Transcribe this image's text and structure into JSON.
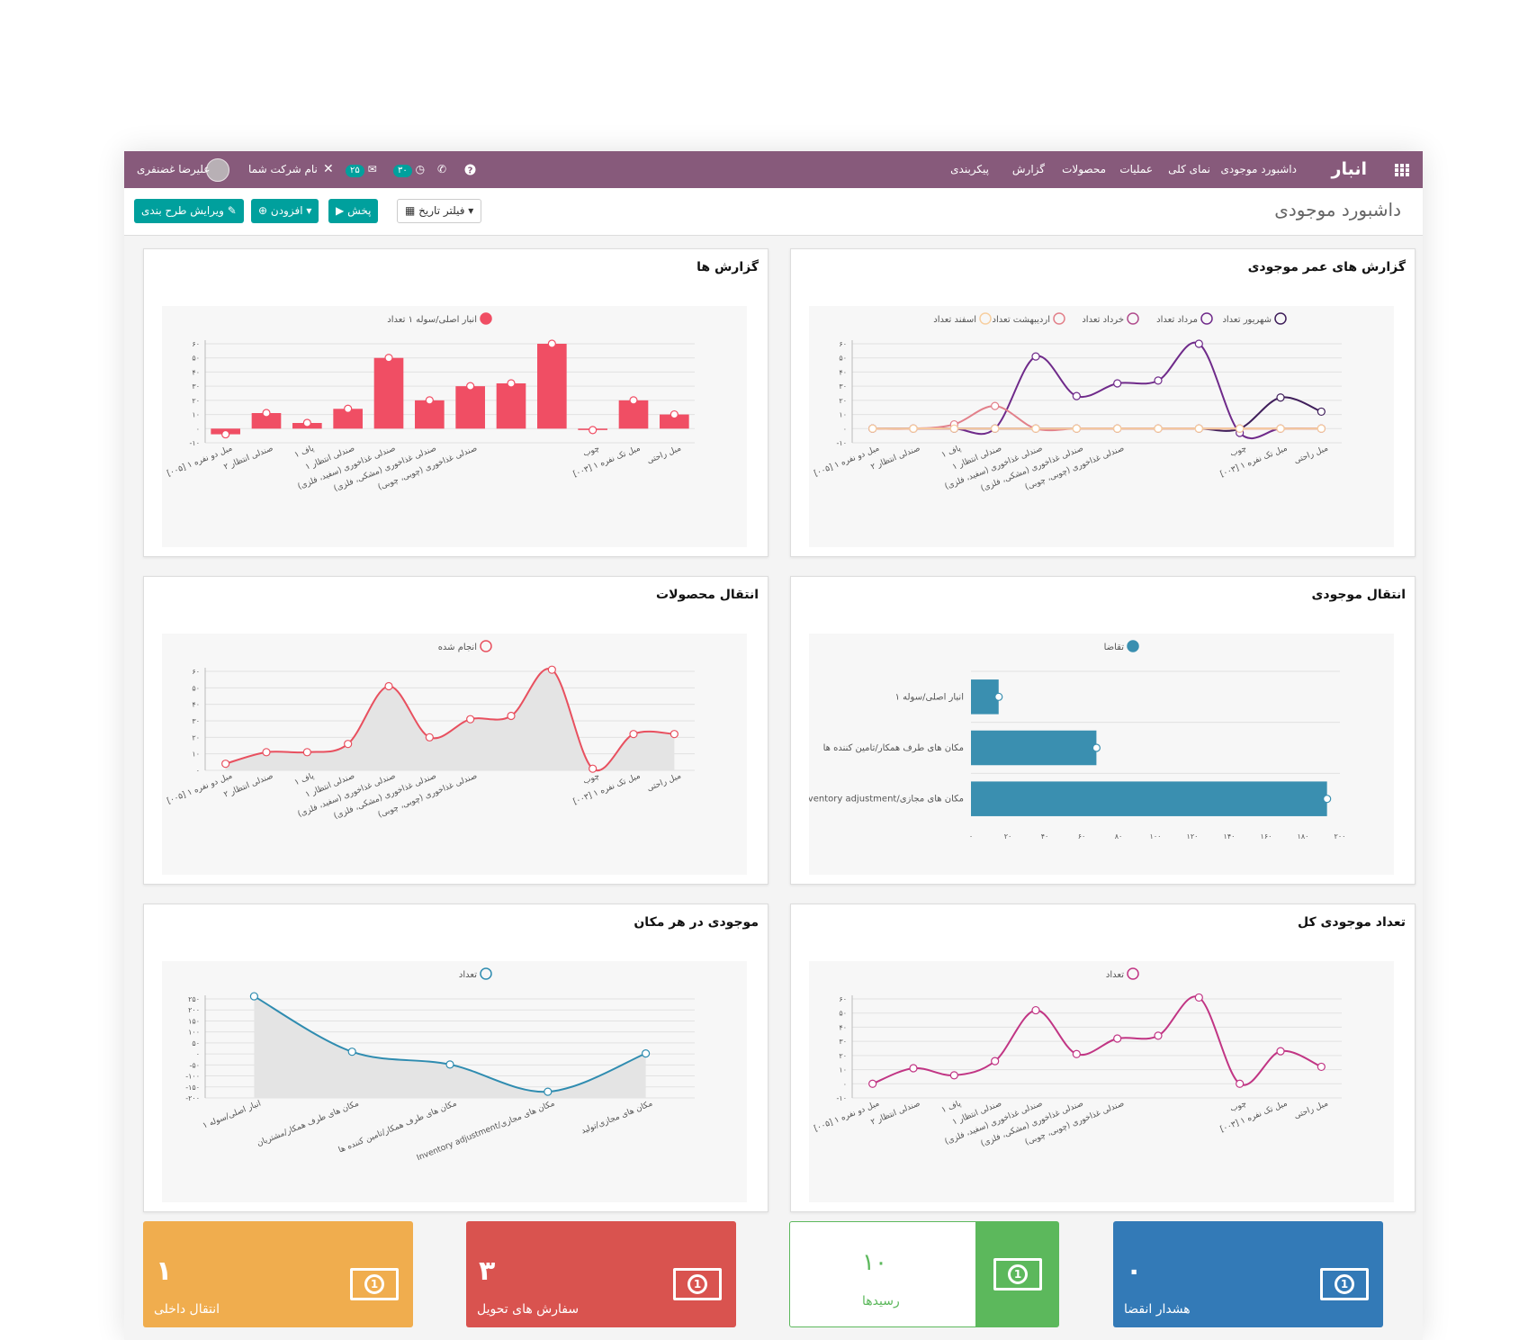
{
  "app": {
    "brand": "انبار",
    "menu": [
      "داشبورد موجودی",
      "نمای کلی",
      "عملیات",
      "محصولات",
      "گزارش",
      "پیکربندی"
    ],
    "user": "علیرضا غضنفری",
    "company": "نام شرکت شما",
    "badge_messages": "۲۵",
    "badge_activities": "۳۰"
  },
  "control_panel": {
    "title": "داشبورد موجودی",
    "date_filter": "فیلتر تاریخ",
    "play_button": "پخش",
    "add_button": "افزودن",
    "edit_layout_button": "ویرایش طرح بندی"
  },
  "tiles": [
    {
      "value": "۰",
      "label": "هشدار انقضا",
      "color": "#337ab7"
    },
    {
      "value": "۱۰",
      "label": "رسیدها",
      "color": "#5cb85c"
    },
    {
      "value": "۳",
      "label": "سفارش های تحویل",
      "color": "#d9534f"
    },
    {
      "value": "۱",
      "label": "انتقال داخلی",
      "color": "#f0ad4e"
    }
  ],
  "chart_data": [
    {
      "id": "aging",
      "type": "line",
      "title": "گزارش های عمر موجودی",
      "categories": [
        "[۰۰۵] مبل دو نفره ۱",
        "صندلی انتظار ۲",
        "پاف ۱",
        "صندلی انتظار ۱",
        "صندلی غذاخوری (سفید، فلزی)",
        "صندلی غذاخوری (مشکی، فلزی)",
        "صندلی غذاخوری (چوبی، چوبی)",
        "",
        "",
        "چوب",
        "[۰۰۳] مبل تک نفره ۱",
        "مبل راحتی"
      ],
      "series": [
        {
          "name": "شهریور تعداد",
          "color": "#3f1e5a",
          "values": [
            0,
            0,
            0,
            0,
            0,
            0,
            0,
            0,
            0,
            0,
            22,
            12
          ]
        },
        {
          "name": "مرداد تعداد",
          "color": "#6f2a8a",
          "values": [
            0,
            0,
            0,
            0,
            51,
            23,
            32,
            34,
            60,
            -3,
            0,
            0
          ]
        },
        {
          "name": "خرداد تعداد",
          "color": "#b04b8c",
          "values": [
            0,
            0,
            0,
            0,
            0,
            0,
            0,
            0,
            0,
            0,
            0,
            0
          ]
        },
        {
          "name": "اردیبهشت تعداد",
          "color": "#e2808a",
          "values": [
            0,
            0,
            3,
            16,
            0,
            0,
            0,
            0,
            0,
            0,
            0,
            0
          ]
        },
        {
          "name": "اسفند تعداد",
          "color": "#f7cfa0",
          "values": [
            0,
            0,
            0,
            0,
            0,
            0,
            0,
            0,
            0,
            0,
            0,
            0
          ]
        }
      ],
      "ylim": [
        -10,
        60
      ],
      "yticks": [
        "-۱۰",
        "۰",
        "۱۰",
        "۲۰",
        "۳۰",
        "۴۰",
        "۵۰",
        "۶۰"
      ],
      "legend": "top-center"
    },
    {
      "id": "reports",
      "type": "bar",
      "title": "گزارش ها",
      "categories": [
        "[۰۰۵] مبل دو نفره ۱",
        "صندلی انتظار ۲",
        "پاف ۱",
        "صندلی انتظار ۱",
        "صندلی غذاخوری (سفید، فلزی)",
        "صندلی غذاخوری (مشکی، فلزی)",
        "صندلی غذاخوری (چوبی، چوبی)",
        "",
        "",
        "چوب",
        "[۰۰۳] مبل تک نفره ۱",
        "مبل راحتی"
      ],
      "series": [
        {
          "name": "انبار اصلی/سوله ۱ تعداد",
          "color": "#f04e64",
          "values": [
            -4,
            11,
            4,
            14,
            50,
            20,
            30,
            32,
            60,
            -1,
            20,
            10
          ]
        }
      ],
      "ylim": [
        -10,
        60
      ],
      "yticks": [
        "-۱۰",
        "۰",
        "۱۰",
        "۲۰",
        "۳۰",
        "۴۰",
        "۵۰",
        "۶۰"
      ],
      "legend": "top-center"
    },
    {
      "id": "stock_transfer",
      "type": "bar",
      "orientation": "horizontal",
      "title": "انتقال موجودی",
      "categories": [
        "انبار اصلی/سوله ۱",
        "مکان های طرف همکار/تامین کننده ها",
        "Inventory adjustment/مکان های مجازی"
      ],
      "series": [
        {
          "name": "تقاضا",
          "color": "#3a8fb0",
          "values": [
            15,
            68,
            193
          ]
        }
      ],
      "xlim": [
        0,
        200
      ],
      "xticks": [
        "۰",
        "۲۰",
        "۴۰",
        "۶۰",
        "۸۰",
        "۱۰۰",
        "۱۲۰",
        "۱۴۰",
        "۱۶۰",
        "۱۸۰",
        "۲۰۰"
      ],
      "legend": "top-center"
    },
    {
      "id": "product_transfer",
      "type": "area",
      "title": "انتقال محصولات",
      "categories": [
        "[۰۰۵] مبل دو نفره ۱",
        "صندلی انتظار ۲",
        "پاف ۱",
        "صندلی انتظار ۱",
        "صندلی غذاخوری (سفید، فلزی)",
        "صندلی غذاخوری (مشکی، فلزی)",
        "صندلی غذاخوری (چوبی، چوبی)",
        "",
        "",
        "چوب",
        "[۰۰۳] مبل تک نفره ۱",
        "مبل راحتی"
      ],
      "series": [
        {
          "name": "انجام شده",
          "color": "#e8505f",
          "values": [
            4,
            11,
            11,
            16,
            51,
            20,
            31,
            33,
            61,
            1,
            22,
            22
          ]
        }
      ],
      "ylim": [
        0,
        60
      ],
      "yticks": [
        "۰",
        "۱۰",
        "۲۰",
        "۳۰",
        "۴۰",
        "۵۰",
        "۶۰"
      ],
      "legend": "top-center"
    },
    {
      "id": "total_stock",
      "type": "line",
      "title": "تعداد موجودی کل",
      "categories": [
        "[۰۰۵] مبل دو نفره ۱",
        "صندلی انتظار ۲",
        "پاف ۱",
        "صندلی انتظار ۱",
        "صندلی غذاخوری (سفید، فلزی)",
        "صندلی غذاخوری (مشکی، فلزی)",
        "صندلی غذاخوری (چوبی، چوبی)",
        "",
        "",
        "چوب",
        "[۰۰۳] مبل تک نفره ۱",
        "مبل راحتی"
      ],
      "series": [
        {
          "name": "تعداد",
          "color": "#c13584",
          "values": [
            0,
            11,
            6,
            16,
            52,
            21,
            32,
            34,
            61,
            0,
            23,
            12
          ]
        }
      ],
      "ylim": [
        -10,
        60
      ],
      "yticks": [
        "-۱۰",
        "۰",
        "۱۰",
        "۲۰",
        "۳۰",
        "۴۰",
        "۵۰",
        "۶۰"
      ],
      "legend": "top-center"
    },
    {
      "id": "stock_per_location",
      "type": "area",
      "title": "موجودی در هر مکان",
      "categories": [
        "انبار اصلی/سوله ۱",
        "مکان های طرف همکار/مشتریان",
        "مکان های طرف همکار/تامین کننده ها",
        "Inventory adjustment/مکان های مجازی",
        "مکان های مجازی/تولید"
      ],
      "series": [
        {
          "name": "تعداد",
          "color": "#2f8cb0",
          "values": [
            262,
            10,
            -48,
            -172,
            2
          ]
        }
      ],
      "ylim": [
        -200,
        250
      ],
      "yticks": [
        "-۲۰۰",
        "-۱۵۰",
        "-۱۰۰",
        "-۵۰",
        "۰",
        "۵۰",
        "۱۰۰",
        "۱۵۰",
        "۲۰۰",
        "۲۵۰"
      ],
      "legend": "top-center"
    }
  ]
}
